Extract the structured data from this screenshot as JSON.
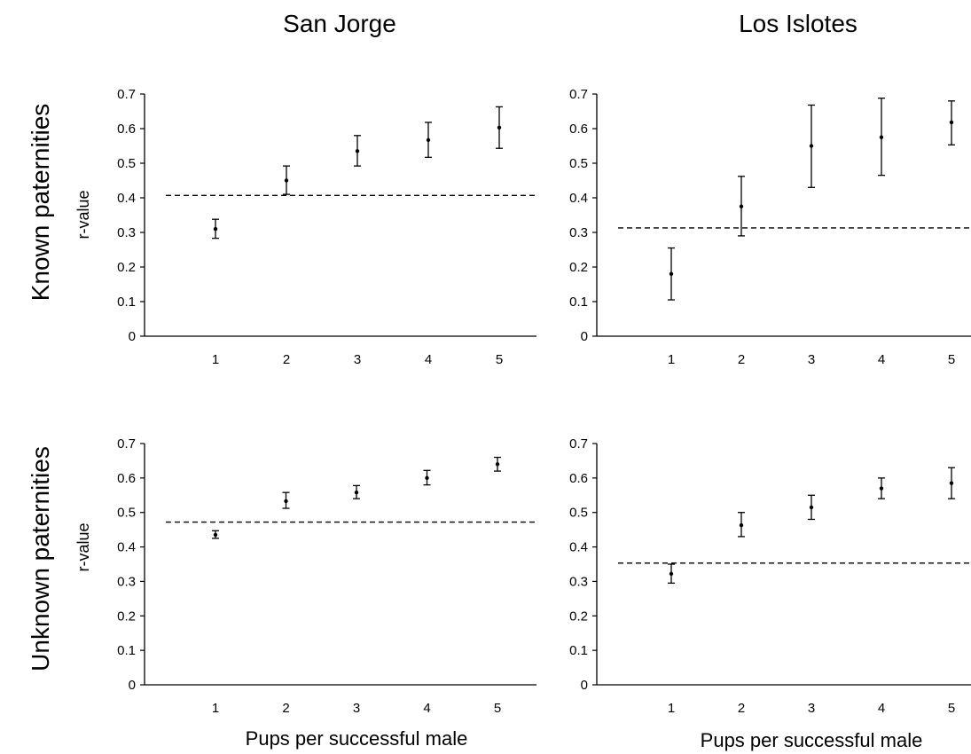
{
  "column_titles": [
    "San Jorge",
    "Los Islotes"
  ],
  "row_titles": [
    "Known paternities",
    "Unknown paternities"
  ],
  "x_axis_label": "Pups per successful male",
  "y_axis_label": "r-value",
  "chart_data": [
    {
      "type": "scatter",
      "panel": "San Jorge - Known paternities",
      "x": [
        1,
        2,
        3,
        4,
        5
      ],
      "y": [
        0.31,
        0.45,
        0.535,
        0.567,
        0.603
      ],
      "y_lower": [
        0.283,
        0.41,
        0.492,
        0.517,
        0.543
      ],
      "y_upper": [
        0.338,
        0.492,
        0.58,
        0.618,
        0.663
      ],
      "reference_line": 0.407,
      "xlabel": "",
      "ylabel": "r-value",
      "ylim": [
        0,
        0.7
      ],
      "yticks": [
        0,
        0.1,
        0.2,
        0.3,
        0.4,
        0.5,
        0.6,
        0.7
      ],
      "xticks": [
        1,
        2,
        3,
        4,
        5
      ],
      "grid": false
    },
    {
      "type": "scatter",
      "panel": "Los Islotes - Known paternities",
      "x": [
        1,
        2,
        3,
        4,
        5
      ],
      "y": [
        0.18,
        0.375,
        0.55,
        0.575,
        0.618
      ],
      "y_lower": [
        0.105,
        0.29,
        0.43,
        0.465,
        0.553
      ],
      "y_upper": [
        0.255,
        0.462,
        0.668,
        0.688,
        0.68
      ],
      "reference_line": 0.313,
      "xlabel": "",
      "ylabel": "",
      "ylim": [
        0,
        0.7
      ],
      "yticks": [
        0,
        0.1,
        0.2,
        0.3,
        0.4,
        0.5,
        0.6,
        0.7
      ],
      "xticks": [
        1,
        2,
        3,
        4,
        5
      ],
      "grid": false
    },
    {
      "type": "scatter",
      "panel": "San Jorge - Unknown paternities",
      "x": [
        1,
        2,
        3,
        4,
        5
      ],
      "y": [
        0.435,
        0.533,
        0.558,
        0.6,
        0.64
      ],
      "y_lower": [
        0.425,
        0.512,
        0.54,
        0.58,
        0.62
      ],
      "y_upper": [
        0.447,
        0.558,
        0.578,
        0.622,
        0.66
      ],
      "reference_line": 0.472,
      "xlabel": "Pups per successful male",
      "ylabel": "r-value",
      "ylim": [
        0,
        0.7
      ],
      "yticks": [
        0,
        0.1,
        0.2,
        0.3,
        0.4,
        0.5,
        0.6,
        0.7
      ],
      "xticks": [
        1,
        2,
        3,
        4,
        5
      ],
      "grid": false
    },
    {
      "type": "scatter",
      "panel": "Los Islotes - Unknown paternities",
      "x": [
        1,
        2,
        3,
        4,
        5
      ],
      "y": [
        0.322,
        0.463,
        0.515,
        0.57,
        0.585
      ],
      "y_lower": [
        0.295,
        0.43,
        0.48,
        0.54,
        0.54
      ],
      "y_upper": [
        0.35,
        0.5,
        0.55,
        0.6,
        0.63
      ],
      "reference_line": 0.353,
      "xlabel": "Pups per successful male",
      "ylabel": "",
      "ylim": [
        0,
        0.7
      ],
      "yticks": [
        0,
        0.1,
        0.2,
        0.3,
        0.4,
        0.5,
        0.6,
        0.7
      ],
      "xticks": [
        1,
        2,
        3,
        4,
        5
      ],
      "grid": false
    }
  ]
}
